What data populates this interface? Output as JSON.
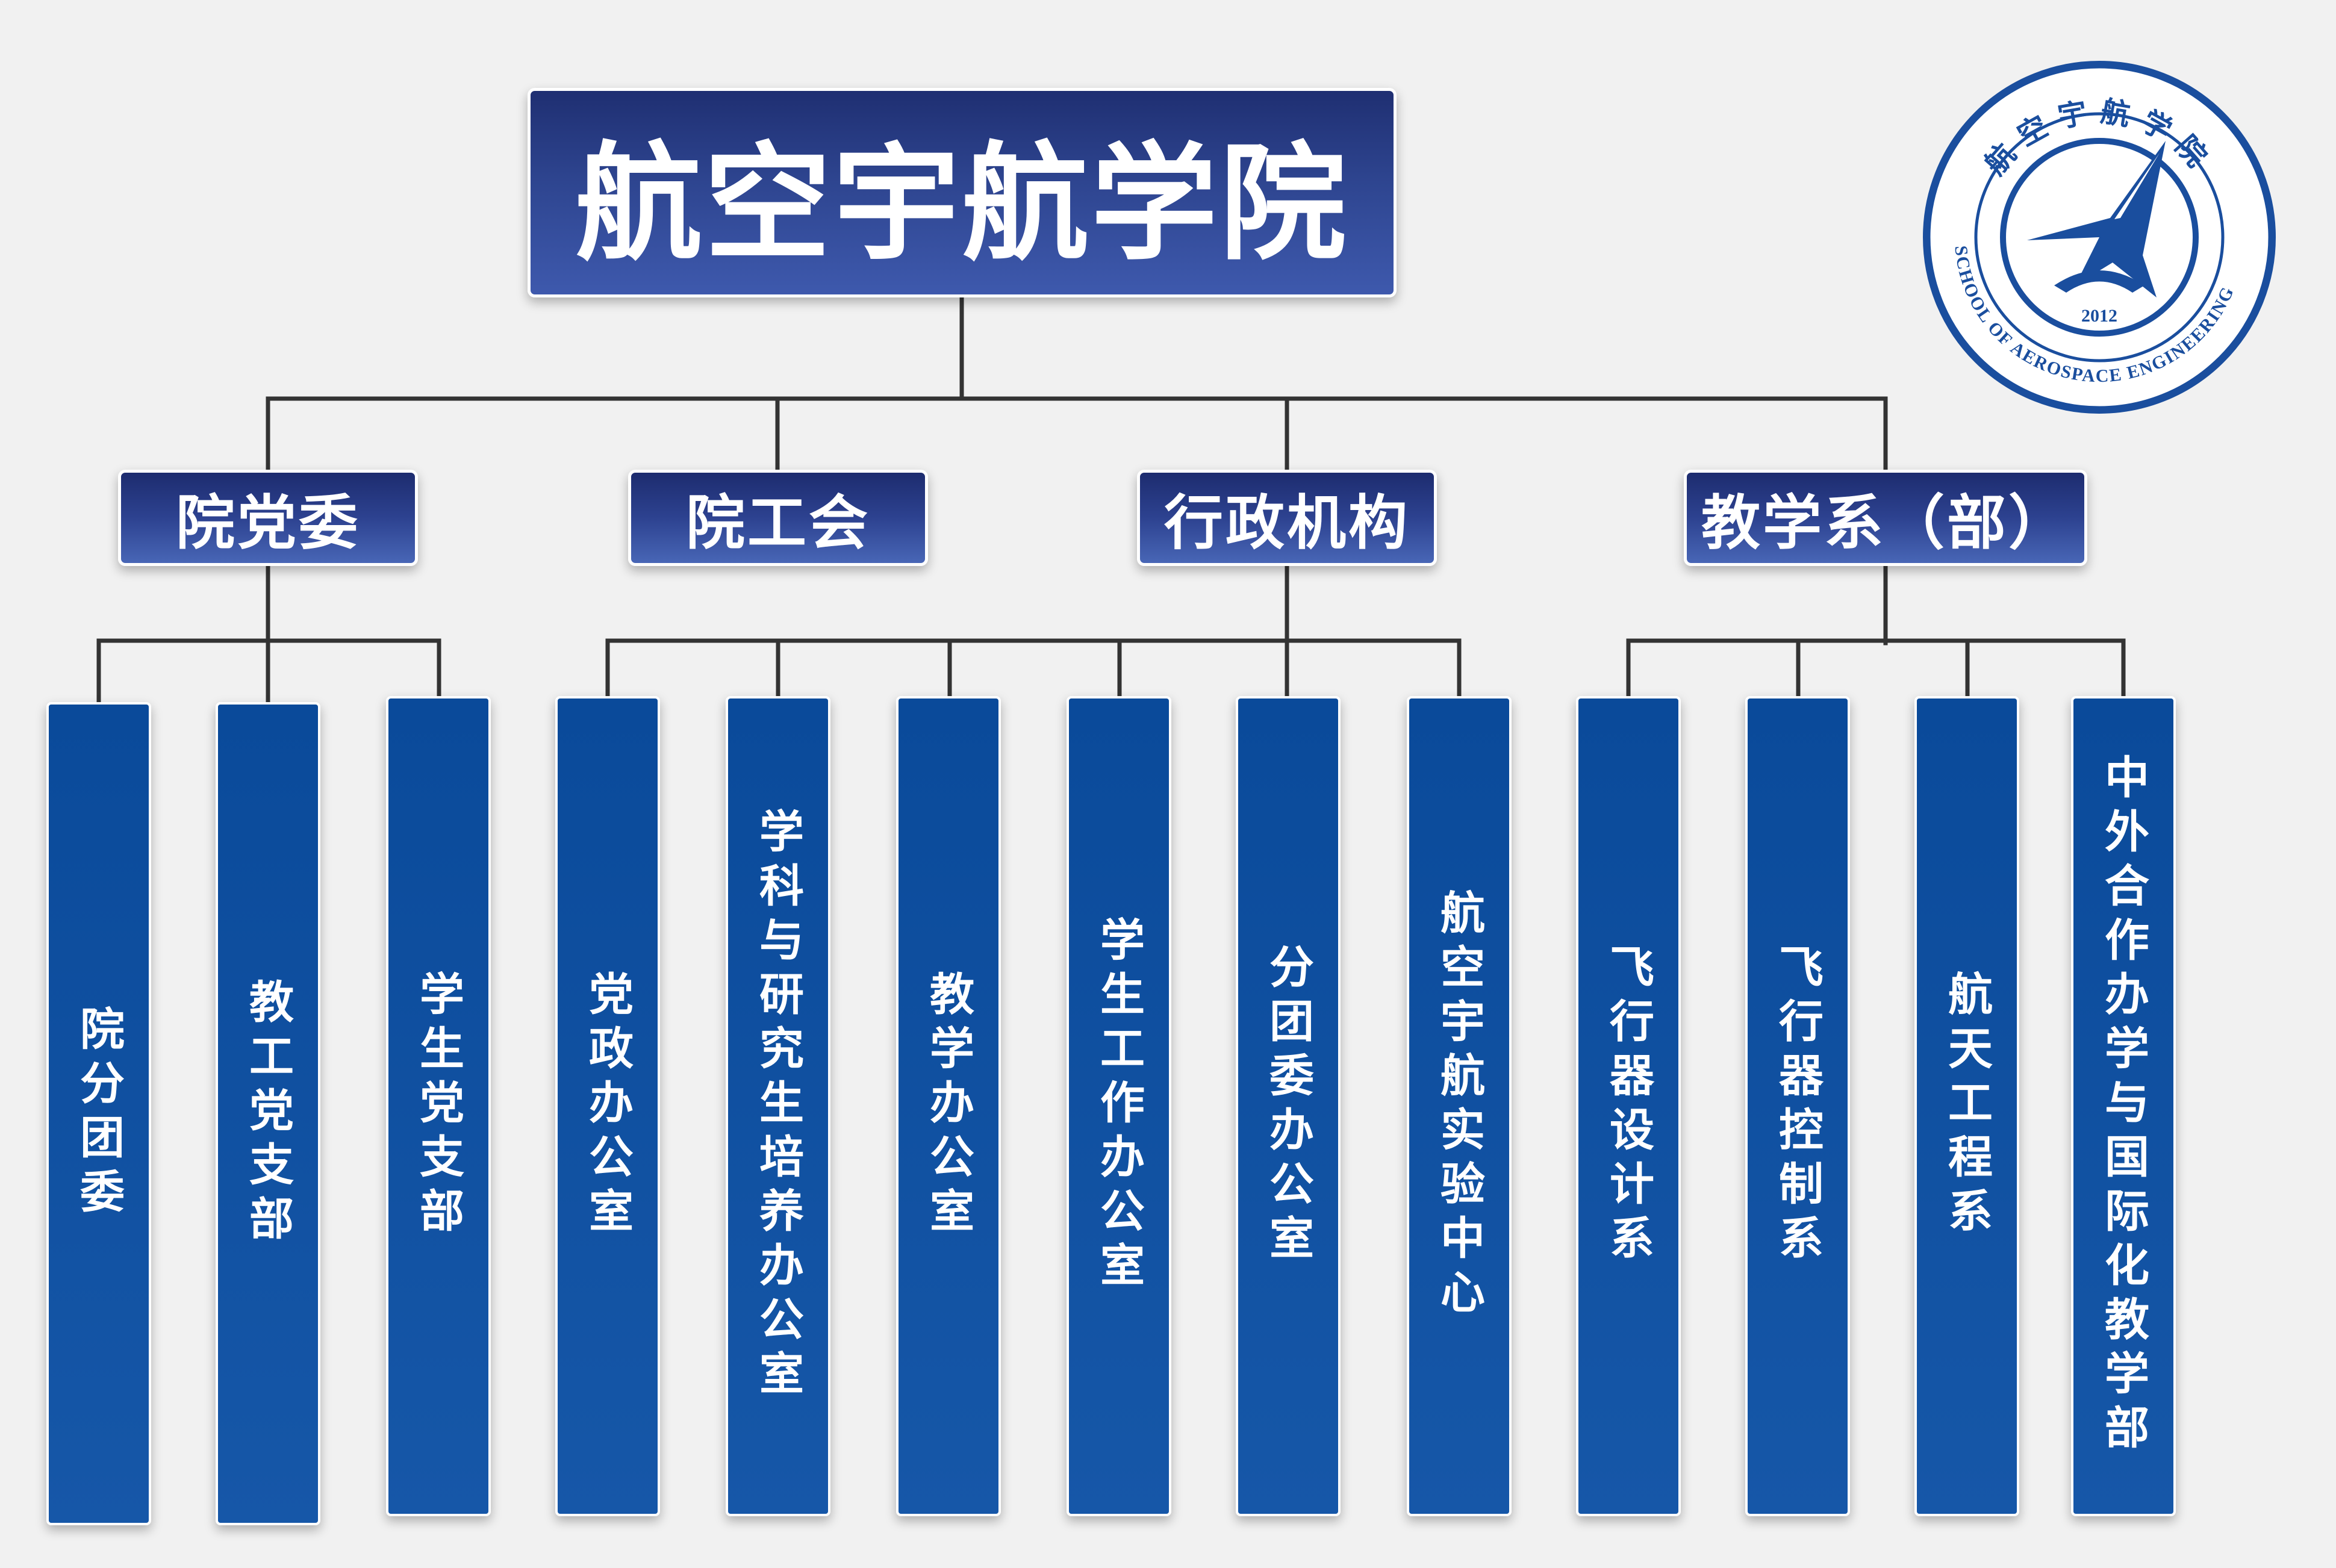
{
  "root": {
    "label": "航空宇航学院"
  },
  "groups": [
    {
      "label": "院党委"
    },
    {
      "label": "院工会"
    },
    {
      "label": "行政机构"
    },
    {
      "label": "教学系（部）"
    }
  ],
  "units": [
    {
      "label": "院分团委"
    },
    {
      "label": "教工党支部"
    },
    {
      "label": "学生党支部"
    },
    {
      "label": "党政办公室"
    },
    {
      "label": "学科与研究生培养办公室"
    },
    {
      "label": "教学办公室"
    },
    {
      "label": "学生工作办公室"
    },
    {
      "label": "分团委办公室"
    },
    {
      "label": "航空宇航实验中心"
    },
    {
      "label": "飞行器设计系"
    },
    {
      "label": "飞行器控制系"
    },
    {
      "label": "航天工程系"
    },
    {
      "label": "中外合作办学与国际化教学部"
    }
  ],
  "logo": {
    "top_text": "航空宇航学院",
    "ring_text": "SCHOOL OF AEROSPACE ENGINEERING",
    "year": "2012",
    "color": "#1a4e9e"
  },
  "colors": {
    "root": "#2e4590",
    "group": "#2d4290",
    "unit": "#0f50a0",
    "connector": "#333333"
  }
}
